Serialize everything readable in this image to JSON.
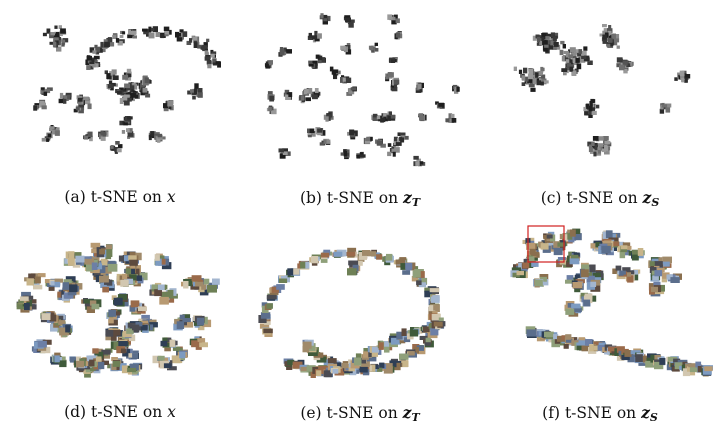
{
  "figure": {
    "panels": [
      {
        "id": "a",
        "label": "(a)",
        "text": "t-SNE on",
        "var": "x",
        "sub": "",
        "style": "gray",
        "shape": "arc-cloud"
      },
      {
        "id": "b",
        "label": "(b)",
        "text": "t-SNE on",
        "var": "z",
        "sub": "T",
        "style": "gray",
        "shape": "scattered-clusters"
      },
      {
        "id": "c",
        "label": "(c)",
        "text": "t-SNE on",
        "var": "z",
        "sub": "S",
        "style": "gray",
        "shape": "branched-clusters"
      },
      {
        "id": "d",
        "label": "(d)",
        "text": "t-SNE on",
        "var": "x",
        "sub": "",
        "style": "color",
        "shape": "oval-blob"
      },
      {
        "id": "e",
        "label": "(e)",
        "text": "t-SNE on",
        "var": "z",
        "sub": "T",
        "style": "color",
        "shape": "spiral"
      },
      {
        "id": "f",
        "label": "(f)",
        "text": "t-SNE on",
        "var": "z",
        "sub": "S",
        "style": "color",
        "shape": "two-lobes-with-highlight"
      }
    ],
    "highlight_color": "#d02020"
  }
}
